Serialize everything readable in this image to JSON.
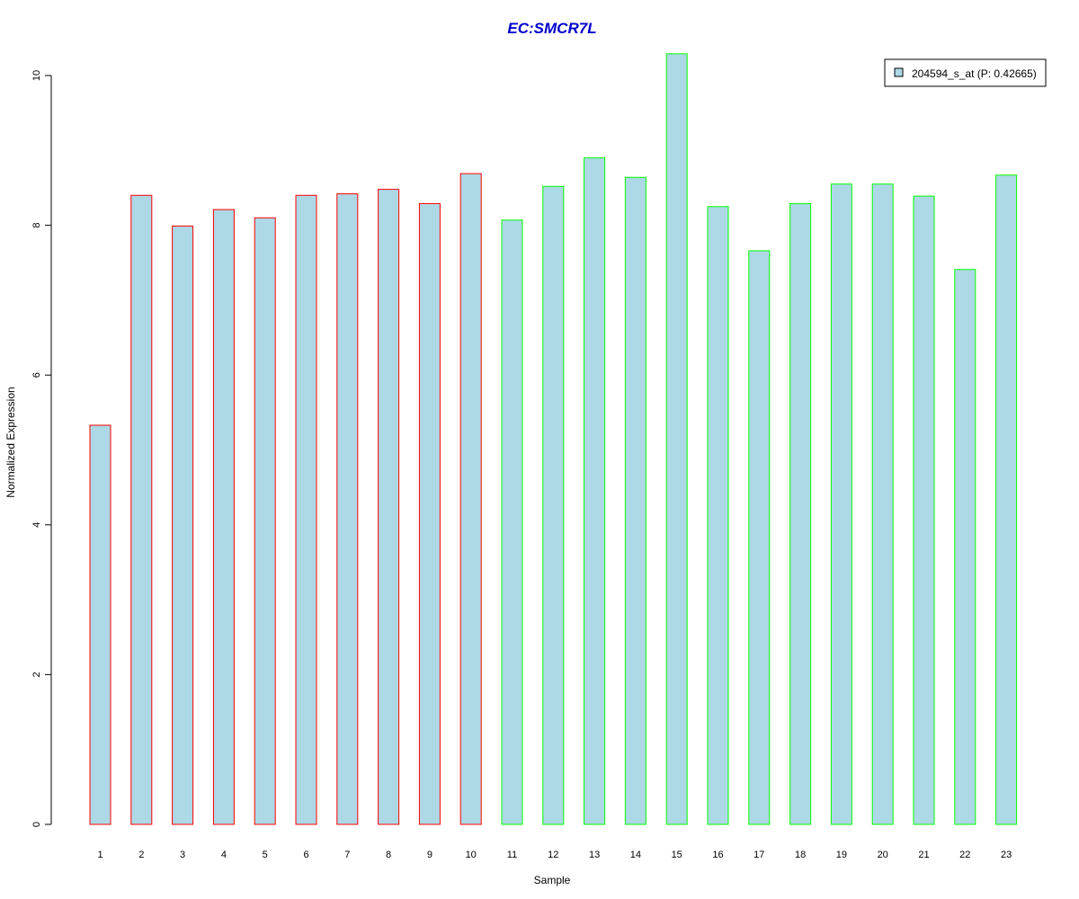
{
  "chart_data": {
    "type": "bar",
    "title": "EC:SMCR7L",
    "xlabel": "Sample",
    "ylabel": "Normalized Expression",
    "categories": [
      "1",
      "2",
      "3",
      "4",
      "5",
      "6",
      "7",
      "8",
      "9",
      "10",
      "11",
      "12",
      "13",
      "14",
      "15",
      "16",
      "17",
      "18",
      "19",
      "20",
      "21",
      "22",
      "23"
    ],
    "series": [
      {
        "name": "204594_s_at (P: 0.42665)",
        "values": [
          5.33,
          8.4,
          7.99,
          8.21,
          8.1,
          8.4,
          8.42,
          8.48,
          8.29,
          8.69,
          8.07,
          8.52,
          8.9,
          8.64,
          10.29,
          8.25,
          7.66,
          8.29,
          8.55,
          8.55,
          8.39,
          7.41,
          8.67
        ]
      }
    ],
    "group_of_bar": [
      "red",
      "red",
      "red",
      "red",
      "red",
      "red",
      "red",
      "red",
      "red",
      "red",
      "green",
      "green",
      "green",
      "green",
      "green",
      "green",
      "green",
      "green",
      "green",
      "green",
      "green",
      "green",
      "green"
    ],
    "yticks": [
      0,
      2,
      4,
      6,
      8,
      10
    ],
    "ylim": [
      0,
      10.3
    ],
    "grid": false,
    "legend_position": "top-right",
    "colors": {
      "bar_fill": "#add8e6",
      "red": "#ff0000",
      "green": "#00ff00",
      "title": "#0000cd",
      "axis": "#000000"
    }
  }
}
